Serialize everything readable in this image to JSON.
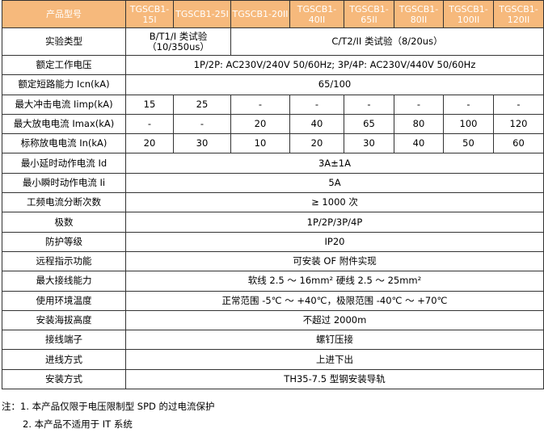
{
  "header": {
    "label": "产品型号",
    "models": [
      "TGSCB1-15I",
      "TGSCB1-25I",
      "TGSCB1-20II",
      "TGSCB1-40II",
      "TGSCB1-65II",
      "TGSCB1-80II",
      "TGSCB1-100II",
      "TGSCB1-120II"
    ]
  },
  "test_type": {
    "label": "实验类型",
    "class1": "B/T1/I 类试验（10/350us）",
    "class2": "C/T2/II 类试验（8/20us）"
  },
  "rated_voltage": {
    "label": "额定工作电压",
    "value": "1P/2P: AC230V/240V 50/60Hz; 3P/4P: AC230V/440V 50/60Hz"
  },
  "short_circuit": {
    "label": "额定短路能力 Icn(kA)",
    "value": "65/100"
  },
  "iimp": {
    "label": "最大冲击电流 Iimp(kA)",
    "values": [
      "15",
      "25",
      "-",
      "-",
      "-",
      "-",
      "-",
      "-"
    ]
  },
  "imax": {
    "label": "最大放电电流 Imax(kA)",
    "values": [
      "-",
      "-",
      "20",
      "40",
      "65",
      "80",
      "100",
      "120"
    ]
  },
  "in": {
    "label": "标称放电电流 In(kA)",
    "values": [
      "20",
      "30",
      "10",
      "20",
      "30",
      "40",
      "50",
      "60"
    ]
  },
  "rows": [
    {
      "label": "最小延时动作电流 Id",
      "value": "3A±1A"
    },
    {
      "label": "最小瞬时动作电流 Ii",
      "value": "5A"
    },
    {
      "label": "工频电流分断次数",
      "value": "≥ 1000 次"
    },
    {
      "label": "极数",
      "value": "1P/2P/3P/4P"
    },
    {
      "label": "防护等级",
      "value": "IP20"
    },
    {
      "label": "远程指示功能",
      "value": "可安装 OF 附件实现"
    },
    {
      "label": "最大接线能力",
      "value": "软线 2.5 ～ 16mm² 硬线 2.5 ～ 25mm²"
    },
    {
      "label": "使用环境温度",
      "value": "正常范围 -5℃ ～ +40℃，极限范围 -40℃ ～ +70℃"
    },
    {
      "label": "安装海拔高度",
      "value": "不超过 2000m"
    },
    {
      "label": "接线端子",
      "value": "螺钉压接"
    },
    {
      "label": "进线方式",
      "value": "上进下出"
    },
    {
      "label": "安装方式",
      "value": "TH35-7.5 型钢安装导轨"
    }
  ],
  "notes": [
    "注：1. 本产品仅限于电压限制型 SPD 的过电流保护",
    "2. 本产品不适用于 IT 系统"
  ],
  "colors": {
    "header_bg": "#f6b97c"
  }
}
